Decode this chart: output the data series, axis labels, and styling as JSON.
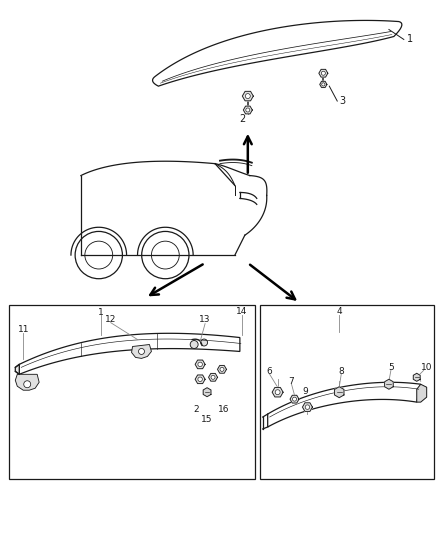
{
  "bg_color": "#ffffff",
  "line_color": "#1a1a1a",
  "label_color": "#111111",
  "gray": "#888888",
  "lightgray": "#cccccc",
  "darkgray": "#555555"
}
